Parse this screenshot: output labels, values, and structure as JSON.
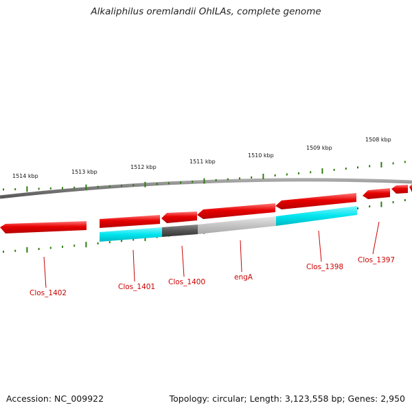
{
  "title": "Alkaliphilus oremlandii OhILAs, complete genome",
  "footer": {
    "accession": "Accession: NC_009922",
    "topology": "Topology: circular; Length: 3,123,558 bp; Genes: 2,950"
  },
  "kbp_labels": [
    "1514 kbp",
    "1513 kbp",
    "1512 kbp",
    "1511 kbp",
    "1510 kbp",
    "1509 kbp",
    "1508 kbp"
  ],
  "gene_labels": [
    "Clos_1402",
    "Clos_1401",
    "Clos_1400",
    "engA",
    "Clos_1398",
    "Clos_1397"
  ],
  "colors": {
    "cds_forward": "#e60000",
    "cds_highlight": "#ff5555",
    "gene_feature": "#00e5ee",
    "gene_feature_dark": "#555555",
    "gene_feature_light": "#c8c8c8",
    "backbone": "#888888",
    "ticks": "#2e7d0e",
    "label": "#cc0000"
  }
}
